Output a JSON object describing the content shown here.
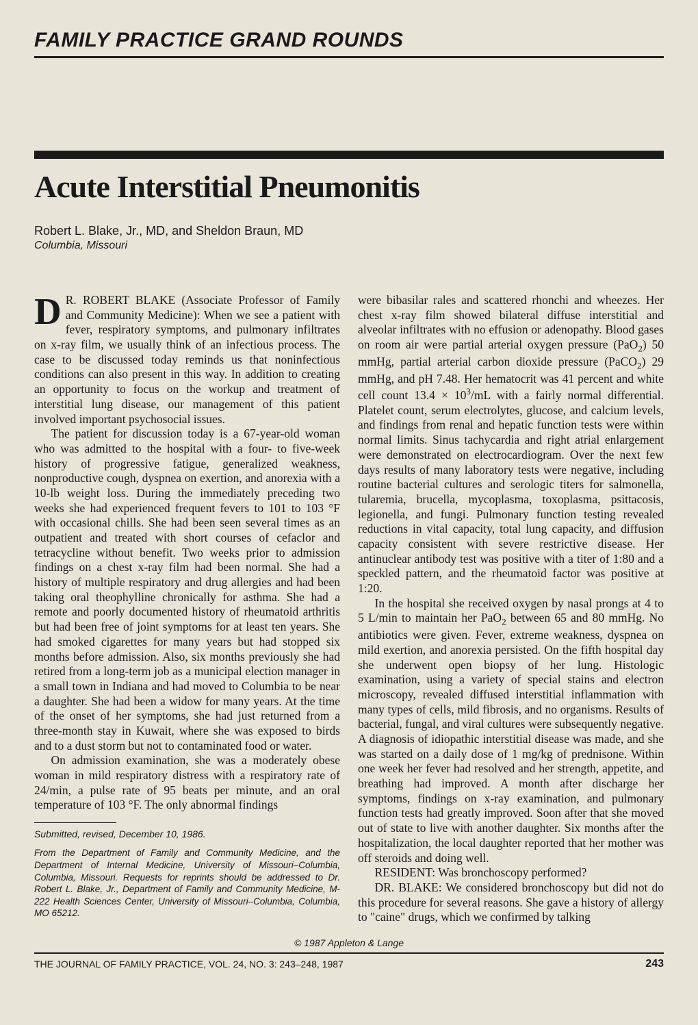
{
  "series_header": "FAMILY PRACTICE GRAND ROUNDS",
  "article": {
    "title": "Acute Interstitial Pneumonitis",
    "authors": "Robert L. Blake, Jr., MD, and Sheldon Braun, MD",
    "affiliation": "Columbia, Missouri"
  },
  "body": {
    "drop_letter": "D",
    "p1": "R. ROBERT BLAKE (Associate Professor of Family and Community Medicine): When we see a patient with fever, respiratory symptoms, and pulmonary infiltrates on x-ray film, we usually think of an infectious process. The case to be discussed today reminds us that noninfectious conditions can also present in this way. In addition to creating an opportunity to focus on the workup and treatment of interstitial lung disease, our management of this patient involved important psychosocial issues.",
    "p2": "The patient for discussion today is a 67-year-old woman who was admitted to the hospital with a four- to five-week history of progressive fatigue, generalized weakness, nonproductive cough, dyspnea on exertion, and anorexia with a 10-lb weight loss. During the immediately preceding two weeks she had experienced frequent fevers to 101 to 103 °F with occasional chills. She had been seen several times as an outpatient and treated with short courses of cefaclor and tetracycline without benefit. Two weeks prior to admission findings on a chest x-ray film had been normal. She had a history of multiple respiratory and drug allergies and had been taking oral theophylline chronically for asthma. She had a remote and poorly documented history of rheumatoid arthritis but had been free of joint symptoms for at least ten years. She had smoked cigarettes for many years but had stopped six months before admission. Also, six months previously she had retired from a long-term job as a municipal election manager in a small town in Indiana and had moved to Columbia to be near a daughter. She had been a widow for many years. At the time of the onset of her symptoms, she had just returned from a three-month stay in Kuwait, where she was exposed to birds and to a dust storm but not to contaminated food or water.",
    "p3": "On admission examination, she was a moderately obese woman in mild respiratory distress with a respiratory rate of 24/min, a pulse rate of 95 beats per minute, and an oral temperature of 103 °F. The only abnormal findings",
    "p4a": "were bibasilar rales and scattered rhonchi and wheezes. Her chest x-ray film showed bilateral diffuse interstitial and alveolar infiltrates with no effusion or adenopathy. Blood gases on room air were partial arterial oxygen pressure (PaO",
    "p4b": ") 50 mmHg, partial arterial carbon dioxide pressure (PaCO",
    "p4c": ") 29 mmHg, and pH 7.48. Her hematocrit was 41 percent and white cell count 13.4 × 10",
    "p4d": "/mL with a fairly normal differential. Platelet count, serum electrolytes, glucose, and calcium levels, and findings from renal and hepatic function tests were within normal limits. Sinus tachycardia and right atrial enlargement were demonstrated on electrocardiogram. Over the next few days results of many laboratory tests were negative, including routine bacterial cultures and serologic titers for salmonella, tularemia, brucella, mycoplasma, toxoplasma, psittacosis, legionella, and fungi. Pulmonary function testing revealed reductions in vital capacity, total lung capacity, and diffusion capacity consistent with severe restrictive disease. Her antinuclear antibody test was positive with a titer of 1:80 and a speckled pattern, and the rheumatoid factor was positive at 1:20.",
    "p5a": "In the hospital she received oxygen by nasal prongs at 4 to 5 L/min to maintain her PaO",
    "p5b": " between 65 and 80 mmHg. No antibiotics were given. Fever, extreme weakness, dyspnea on mild exertion, and anorexia persisted. On the fifth hospital day she underwent open biopsy of her lung. Histologic examination, using a variety of special stains and electron microscopy, revealed diffused interstitial inflammation with many types of cells, mild fibrosis, and no organisms. Results of bacterial, fungal, and viral cultures were subsequently negative. A diagnosis of idiopathic interstitial disease was made, and she was started on a daily dose of 1 mg/kg of prednisone. Within one week her fever had resolved and her strength, appetite, and breathing had improved. A month after discharge her symptoms, findings on x-ray examination, and pulmonary function tests had greatly improved. Soon after that she moved out of state to live with another daughter. Six months after the hospitalization, the local daughter reported that her mother was off steroids and doing well.",
    "p6": "RESIDENT: Was bronchoscopy performed?",
    "p7": "DR. BLAKE: We considered bronchoscopy but did not do this procedure for several reasons. She gave a history of allergy to \"caine\" drugs, which we confirmed by talking"
  },
  "footnotes": {
    "submitted": "Submitted, revised, December 10, 1986.",
    "dept": "From the Department of Family and Community Medicine, and the Department of Internal Medicine, University of Missouri–Columbia, Columbia, Missouri. Requests for reprints should be addressed to Dr. Robert L. Blake, Jr., Department of Family and Community Medicine, M-222 Health Sciences Center, University of Missouri–Columbia, Columbia, MO 65212."
  },
  "copyright": "© 1987 Appleton & Lange",
  "footer": {
    "journal": "THE JOURNAL OF FAMILY PRACTICE, VOL. 24, NO. 3: 243–248, 1987",
    "page": "243"
  },
  "style": {
    "bg_color": "#e8e4d8",
    "text_color": "#1a1a1a",
    "rule_color": "#1a1a1a",
    "series_fontsize": 30,
    "title_fontsize": 46,
    "body_fontsize": 17.5,
    "footnote_fontsize": 13.5
  }
}
